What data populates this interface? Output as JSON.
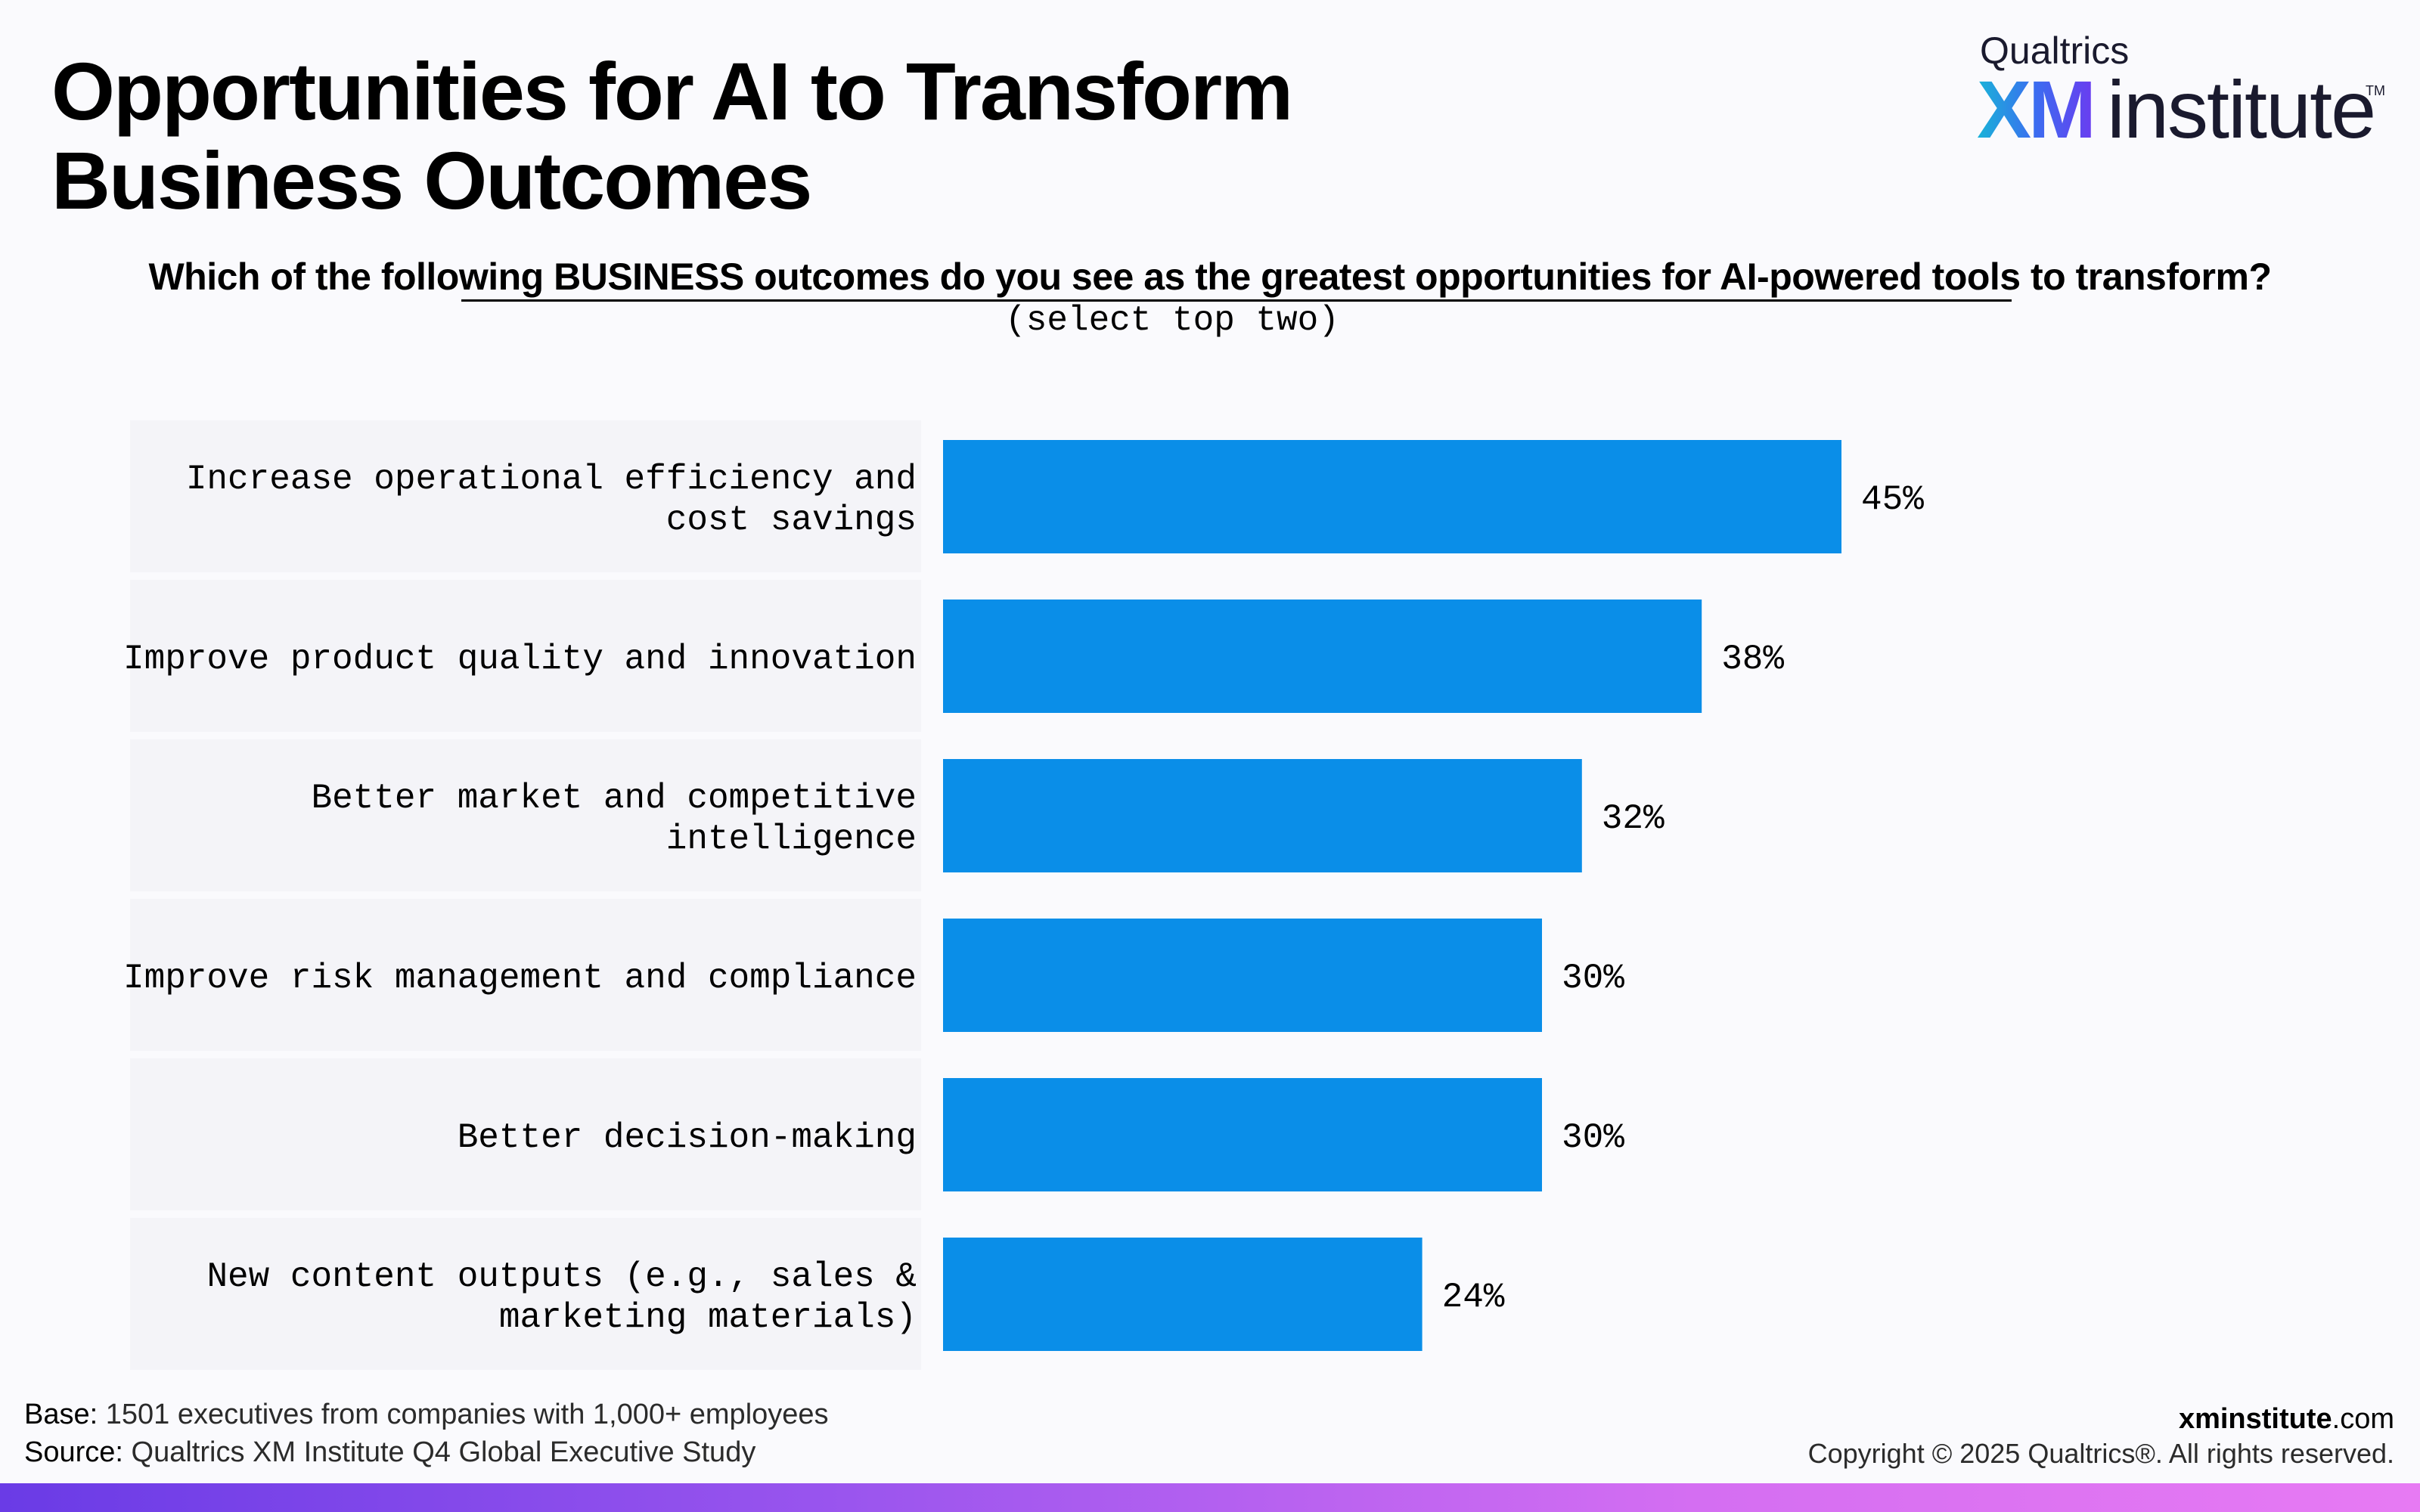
{
  "header": {
    "title_line1": "Opportunities for AI to Transform",
    "title_line2": "Business Outcomes"
  },
  "logo": {
    "brand": "Qualtrics",
    "xm": "XM",
    "word": "institute",
    "tm": "TM"
  },
  "question": {
    "text": "Which of the following BUSINESS outcomes do you see as the greatest opportunities for AI-powered tools to transform?",
    "note": "(select top two)"
  },
  "chart_data": {
    "type": "bar",
    "orientation": "horizontal",
    "categories": [
      [
        "Increase operational efficiency and",
        "cost savings"
      ],
      [
        "Improve product quality and innovation"
      ],
      [
        "Better market and competitive",
        "intelligence"
      ],
      [
        "Improve risk management and compliance"
      ],
      [
        "Better decision-making"
      ],
      [
        "New content outputs (e.g., sales &",
        "marketing materials)"
      ]
    ],
    "values": [
      45,
      38,
      32,
      30,
      30,
      24
    ],
    "value_labels": [
      "45%",
      "38%",
      "32%",
      "30%",
      "30%",
      "24%"
    ],
    "unit": "%",
    "xlim": [
      0,
      100
    ],
    "grid": false,
    "bar_color": "#0a8ee8"
  },
  "footer": {
    "base_label": "Base:",
    "base_text": " 1501 executives from companies with 1,000+ employees",
    "source_label": "Source:",
    "source_text": " Qualtrics XM Institute Q4 Global Executive Study",
    "site_bold": "xminstitute",
    "site_rest": ".com",
    "copyright": "Copyright © 2025 Qualtrics®. All rights reserved."
  },
  "colors": {
    "bar": "#0a8ee8",
    "background": "#fafafd",
    "label_panel": "#f4f4f8"
  }
}
